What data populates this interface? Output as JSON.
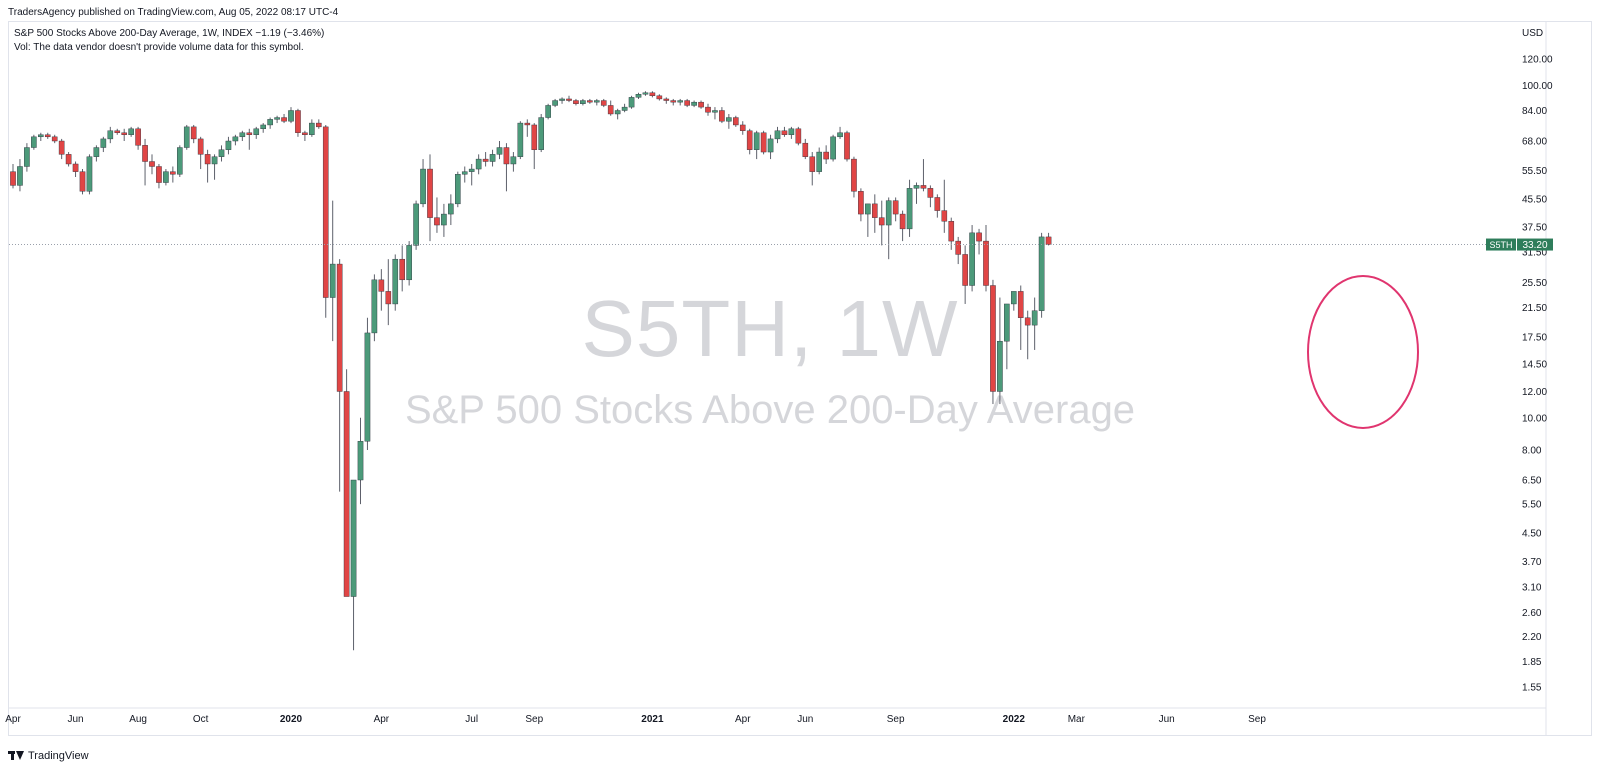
{
  "header": {
    "publisher": "TradersAgency published on TradingView.com, Aug 05, 2022 08:17 UTC-4",
    "legend_line1": "S&P 500 Stocks Above 200-Day Average, 1W, INDEX  −1.19 (−3.46%)",
    "legend_line2": "Vol: The data vendor doesn't provide volume data for this symbol."
  },
  "watermark": {
    "symbol": "S5TH, 1W",
    "description": "S&P 500 Stocks Above 200-Day Average"
  },
  "footer": {
    "brand": "TradingView"
  },
  "colors": {
    "up": "#4c9a7a",
    "down": "#e04545",
    "highlight": "#e0356f",
    "grid_text": "#131722",
    "price_tag": "#2e7d5b"
  },
  "icons": {
    "brand_logo": "tradingview-logo-icon"
  },
  "chart_data": {
    "type": "candlestick",
    "scale": "log",
    "currency_label": "USD",
    "y_ticks": [
      "1.55",
      "1.85",
      "2.20",
      "2.60",
      "3.10",
      "3.70",
      "4.50",
      "5.50",
      "6.50",
      "8.00",
      "10.00",
      "12.00",
      "14.50",
      "17.50",
      "21.50",
      "25.50",
      "31.50",
      "37.50",
      "45.50",
      "55.50",
      "68.00",
      "84.00",
      "100.00",
      "120.00"
    ],
    "last_price": {
      "label": "S5TH",
      "value": "33.20"
    },
    "x_axis": [
      {
        "label": "Apr",
        "week": 0,
        "bold": false
      },
      {
        "label": "Jun",
        "week": 9,
        "bold": false
      },
      {
        "label": "Aug",
        "week": 18,
        "bold": false
      },
      {
        "label": "Oct",
        "week": 27,
        "bold": false
      },
      {
        "label": "2020",
        "week": 40,
        "bold": true
      },
      {
        "label": "Apr",
        "week": 53,
        "bold": false
      },
      {
        "label": "Jul",
        "week": 66,
        "bold": false
      },
      {
        "label": "Sep",
        "week": 75,
        "bold": false
      },
      {
        "label": "2021",
        "week": 92,
        "bold": true
      },
      {
        "label": "Apr",
        "week": 105,
        "bold": false
      },
      {
        "label": "Jun",
        "week": 114,
        "bold": false
      },
      {
        "label": "Sep",
        "week": 127,
        "bold": false
      },
      {
        "label": "2022",
        "week": 144,
        "bold": true
      },
      {
        "label": "Mar",
        "week": 153,
        "bold": false
      },
      {
        "label": "Jun",
        "week": 166,
        "bold": false
      },
      {
        "label": "Sep",
        "week": 179,
        "bold": false
      }
    ],
    "candles": [
      [
        55,
        58,
        49,
        50
      ],
      [
        50,
        60,
        48,
        57
      ],
      [
        57,
        67,
        55,
        65
      ],
      [
        65,
        71,
        64,
        70
      ],
      [
        70,
        72,
        68,
        71
      ],
      [
        71,
        72,
        69,
        70
      ],
      [
        70,
        71,
        67,
        68
      ],
      [
        68,
        69,
        60,
        62
      ],
      [
        62,
        63,
        57,
        58
      ],
      [
        58,
        59,
        53,
        55
      ],
      [
        55,
        56,
        47,
        48
      ],
      [
        48,
        62,
        47,
        61
      ],
      [
        61,
        66,
        59,
        65
      ],
      [
        65,
        70,
        63,
        69
      ],
      [
        69,
        75,
        67,
        73
      ],
      [
        73,
        74,
        71,
        72
      ],
      [
        72,
        74,
        68,
        71
      ],
      [
        71,
        75,
        70,
        74
      ],
      [
        74,
        75,
        64,
        66
      ],
      [
        66,
        69,
        50,
        59
      ],
      [
        59,
        62,
        54,
        57
      ],
      [
        57,
        58,
        49,
        51
      ],
      [
        51,
        56,
        50,
        55
      ],
      [
        55,
        57,
        51,
        54
      ],
      [
        54,
        66,
        53,
        65
      ],
      [
        65,
        76,
        64,
        75
      ],
      [
        75,
        76,
        67,
        69
      ],
      [
        69,
        70,
        56,
        62
      ],
      [
        62,
        64,
        51,
        58
      ],
      [
        58,
        62,
        52,
        61
      ],
      [
        61,
        66,
        59,
        64
      ],
      [
        64,
        70,
        62,
        68
      ],
      [
        68,
        71,
        66,
        70
      ],
      [
        70,
        73,
        68,
        72
      ],
      [
        72,
        74,
        64,
        71
      ],
      [
        71,
        75,
        69,
        74
      ],
      [
        74,
        77,
        72,
        76
      ],
      [
        76,
        80,
        74,
        79
      ],
      [
        79,
        81,
        77,
        80
      ],
      [
        80,
        82,
        77,
        78
      ],
      [
        78,
        86,
        77,
        84
      ],
      [
        84,
        85,
        70,
        72
      ],
      [
        72,
        73,
        68,
        71
      ],
      [
        71,
        79,
        70,
        77
      ],
      [
        77,
        79,
        74,
        75
      ],
      [
        75,
        76,
        20,
        23
      ],
      [
        23,
        45,
        17,
        29
      ],
      [
        29,
        30,
        6,
        12
      ],
      [
        12,
        14,
        2.9,
        2.9
      ],
      [
        2.9,
        6,
        2.0,
        6.5
      ],
      [
        6.5,
        10,
        5.5,
        8.5
      ],
      [
        8.5,
        20,
        8,
        18
      ],
      [
        18,
        27,
        17,
        26
      ],
      [
        26,
        28,
        21,
        24
      ],
      [
        24,
        30,
        19,
        22
      ],
      [
        22,
        31,
        21,
        30
      ],
      [
        30,
        33,
        24,
        26
      ],
      [
        26,
        34,
        25,
        33
      ],
      [
        33,
        45,
        32,
        44
      ],
      [
        44,
        60,
        43,
        56
      ],
      [
        56,
        62,
        34,
        40
      ],
      [
        40,
        46,
        36,
        38
      ],
      [
        38,
        44,
        35,
        41
      ],
      [
        41,
        47,
        38,
        44
      ],
      [
        44,
        55,
        43,
        54
      ],
      [
        54,
        57,
        51,
        55
      ],
      [
        55,
        58,
        50,
        56
      ],
      [
        56,
        62,
        54,
        60
      ],
      [
        60,
        63,
        57,
        59
      ],
      [
        59,
        64,
        57,
        62
      ],
      [
        62,
        68,
        60,
        65
      ],
      [
        65,
        67,
        48,
        58
      ],
      [
        58,
        63,
        55,
        61
      ],
      [
        61,
        78,
        60,
        77
      ],
      [
        77,
        79,
        70,
        76
      ],
      [
        76,
        77,
        56,
        64
      ],
      [
        64,
        82,
        63,
        80
      ],
      [
        80,
        88,
        79,
        87
      ],
      [
        87,
        91,
        86,
        90
      ],
      [
        90,
        92,
        88,
        91
      ],
      [
        91,
        93,
        89,
        90
      ],
      [
        90,
        91,
        87,
        88
      ],
      [
        88,
        91,
        87,
        90
      ],
      [
        90,
        91,
        88,
        89
      ],
      [
        89,
        91,
        87,
        90
      ],
      [
        90,
        91,
        86,
        87
      ],
      [
        87,
        90,
        81,
        82
      ],
      [
        82,
        85,
        79,
        84
      ],
      [
        84,
        88,
        83,
        86
      ],
      [
        86,
        93,
        85,
        92
      ],
      [
        92,
        95,
        91,
        94
      ],
      [
        94,
        96,
        93,
        95
      ],
      [
        95,
        96,
        92,
        93
      ],
      [
        93,
        94,
        90,
        91
      ],
      [
        91,
        92,
        88,
        90
      ],
      [
        90,
        91,
        87,
        89
      ],
      [
        89,
        91,
        87,
        90
      ],
      [
        90,
        91,
        86,
        87
      ],
      [
        87,
        90,
        86,
        89
      ],
      [
        89,
        90,
        85,
        86
      ],
      [
        86,
        88,
        81,
        83
      ],
      [
        83,
        86,
        79,
        84
      ],
      [
        84,
        86,
        77,
        78
      ],
      [
        78,
        82,
        74,
        80
      ],
      [
        80,
        81,
        75,
        76
      ],
      [
        76,
        78,
        71,
        73
      ],
      [
        73,
        74,
        62,
        64
      ],
      [
        64,
        73,
        60,
        72
      ],
      [
        72,
        73,
        62,
        63
      ],
      [
        63,
        71,
        60,
        69
      ],
      [
        69,
        75,
        67,
        73
      ],
      [
        73,
        75,
        70,
        71
      ],
      [
        71,
        75,
        69,
        74
      ],
      [
        74,
        75,
        66,
        67
      ],
      [
        67,
        69,
        60,
        61
      ],
      [
        61,
        63,
        50,
        55
      ],
      [
        55,
        65,
        54,
        63
      ],
      [
        63,
        66,
        58,
        60
      ],
      [
        60,
        71,
        59,
        70
      ],
      [
        70,
        75,
        69,
        72
      ],
      [
        72,
        73,
        59,
        60
      ],
      [
        60,
        61,
        46,
        48
      ],
      [
        48,
        49,
        39,
        41
      ],
      [
        41,
        44,
        35,
        44
      ],
      [
        44,
        47,
        36,
        40
      ],
      [
        40,
        45,
        33,
        38
      ],
      [
        38,
        46,
        30,
        45
      ],
      [
        45,
        46,
        39,
        41
      ],
      [
        41,
        42,
        34,
        37
      ],
      [
        37,
        52,
        35,
        49
      ],
      [
        49,
        51,
        44,
        50
      ],
      [
        50,
        60,
        48,
        49
      ],
      [
        49,
        50,
        43,
        46
      ],
      [
        46,
        47,
        40,
        42
      ],
      [
        42,
        52,
        36,
        39
      ],
      [
        39,
        40,
        32,
        34
      ],
      [
        34,
        35,
        29,
        31
      ],
      [
        31,
        33,
        22,
        25
      ],
      [
        25,
        38,
        24,
        36
      ],
      [
        36,
        37,
        31,
        34
      ],
      [
        34,
        38,
        24,
        25
      ],
      [
        25,
        26,
        11,
        12
      ],
      [
        12,
        23,
        11,
        17
      ],
      [
        17,
        22,
        14,
        22
      ],
      [
        22,
        24,
        21,
        24
      ],
      [
        24,
        25,
        16,
        20
      ],
      [
        20,
        21,
        15,
        19
      ],
      [
        19,
        23,
        16,
        21
      ],
      [
        21,
        36,
        20,
        35
      ],
      [
        35,
        36,
        33,
        33.2
      ]
    ]
  }
}
